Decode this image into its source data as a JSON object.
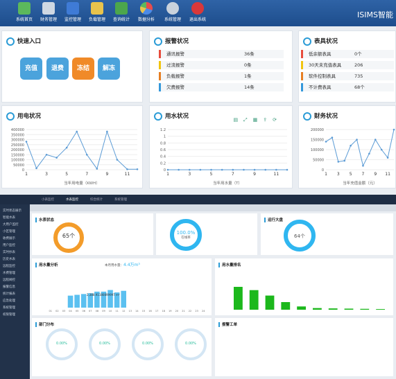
{
  "nav": {
    "items": [
      "系统首页",
      "财务管理",
      "监控管理",
      "负载管理",
      "查询统计",
      "数据分析",
      "系统管理",
      "退出系统"
    ],
    "brand": "ISIMS智能"
  },
  "quick": {
    "title": "快速入口",
    "buttons": [
      "充值",
      "退费",
      "冻结",
      "解冻"
    ]
  },
  "alarm": {
    "title": "报警状况",
    "rows": [
      {
        "label": "通讯报警",
        "value": "36条"
      },
      {
        "label": "过流报警",
        "value": "0条"
      },
      {
        "label": "负载报警",
        "value": "1条"
      },
      {
        "label": "欠费报警",
        "value": "14条"
      }
    ]
  },
  "meter": {
    "title": "表具状况",
    "rows": [
      {
        "label": "低余额表具",
        "value": "0个"
      },
      {
        "label": "30天未充值表具",
        "value": "206"
      },
      {
        "label": "软件控制表具",
        "value": "735"
      },
      {
        "label": "不计费表具",
        "value": "68个"
      }
    ]
  },
  "elec": {
    "title": "用电状况",
    "xlabel": "当年用电量（KWH）"
  },
  "water": {
    "title": "用水状况",
    "xlabel": "当年用水量（T）"
  },
  "finance": {
    "title": "财务状况",
    "xlabel": "当年充值金额（元）"
  },
  "chart_data": [
    {
      "type": "line",
      "title": "用电状况",
      "xlabel": "当年用电量（KWH）",
      "x": [
        1,
        2,
        3,
        4,
        5,
        6,
        7,
        8,
        9,
        10,
        11,
        12
      ],
      "values": [
        280000,
        15000,
        150000,
        120000,
        220000,
        380000,
        150000,
        10000,
        380000,
        100000,
        5000,
        5000
      ],
      "ylim": [
        0,
        400000
      ],
      "yticks": [
        0,
        50000,
        100000,
        150000,
        200000,
        250000,
        300000,
        350000,
        400000
      ]
    },
    {
      "type": "line",
      "title": "用水状况",
      "xlabel": "当年用水量（T）",
      "x": [
        1,
        2,
        3,
        4,
        5,
        6,
        7,
        8,
        9,
        10,
        11,
        12
      ],
      "values": [
        0,
        0,
        0,
        0,
        0,
        0,
        0,
        0,
        0,
        0,
        0,
        0
      ],
      "ylim": [
        0,
        1.2
      ],
      "yticks": [
        0,
        0.2,
        0.4,
        0.6,
        0.8,
        1.0,
        1.2
      ]
    },
    {
      "type": "line",
      "title": "财务状况",
      "xlabel": "当年充值金额（元）",
      "x": [
        1,
        2,
        3,
        4,
        5,
        6,
        7,
        8,
        9,
        10,
        11,
        12
      ],
      "values": [
        140000,
        160000,
        40000,
        45000,
        120000,
        150000,
        20000,
        80000,
        150000,
        100000,
        60000,
        200000
      ],
      "ylim": [
        0,
        200000
      ],
      "yticks": [
        0,
        50000,
        100000,
        150000,
        200000
      ]
    },
    {
      "type": "bar",
      "title": "用水量分析",
      "categories": [
        "01",
        "02",
        "03",
        "04",
        "05",
        "06",
        "07",
        "08",
        "09",
        "10",
        "11",
        "12",
        "13",
        "14",
        "15",
        "16",
        "17",
        "18",
        "19",
        "20",
        "21",
        "22",
        "23",
        "24"
      ],
      "values": [
        0,
        0,
        0,
        1.5,
        1.6,
        1.7,
        1.8,
        2.0,
        2.0,
        2.2,
        1.9,
        2.1,
        0,
        0,
        0,
        0,
        0,
        0,
        0,
        0,
        0,
        0,
        0,
        0
      ],
      "ylim": [
        0,
        4.5
      ]
    },
    {
      "type": "bar",
      "title": "用水量排名",
      "categories": [
        "A1",
        "A2",
        "A3",
        "A4",
        "A5",
        "A6",
        "A7",
        "A8",
        "A9",
        "A10"
      ],
      "values": [
        21,
        18,
        13,
        7,
        3,
        1.5,
        1.2,
        1,
        0.8,
        0.6
      ],
      "ylim": [
        0,
        35
      ]
    }
  ],
  "b": {
    "tabs": [
      "小表监控",
      "水表监控",
      "综合统计",
      "系统管理"
    ],
    "side": [
      "实时状态展示",
      "智能水表",
      "大用户监控",
      "小区管理",
      "收费展示",
      "用户监控",
      "实时抄表",
      "历史水表",
      "远程监控",
      "水费管理",
      "远程阀控",
      "报警信息",
      "统计报表",
      "应急处理",
      "系统管理",
      "权限管理"
    ],
    "water_status": "水表状态",
    "total": "65个",
    "total_sub": "水表总数",
    "online": "100.0%",
    "online_sub": "在线率",
    "runs": "运行大盘",
    "runs_val": "64个",
    "wl": "用水量分析",
    "today": "本月用水量：",
    "today_val": "4.4万m³",
    "rank": "用水量排名",
    "dept": "部门分布",
    "work": "报警工单",
    "tooltip": "2,388.91180899997 m³",
    "pcts": [
      "0.00%",
      "0.00%",
      "0.00%",
      "0.00%"
    ]
  }
}
